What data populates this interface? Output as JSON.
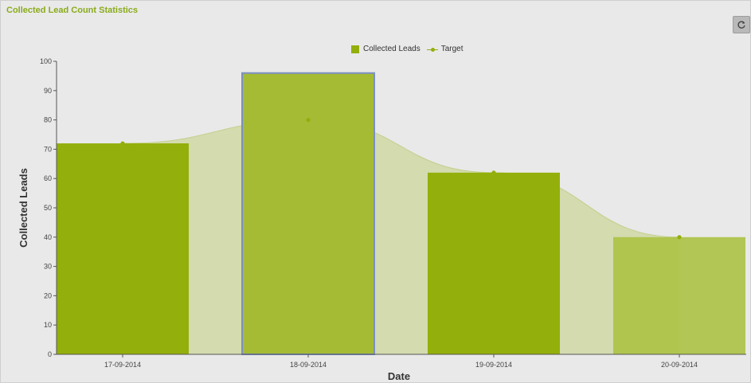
{
  "widget": {
    "title": "Collected Lead Count Statistics",
    "refresh_icon": "refresh-icon"
  },
  "legend": {
    "bar_label": "Collected Leads",
    "line_label": "Target"
  },
  "colors": {
    "bar": "#93af0b",
    "bar_highlight": "#a5bb34",
    "bar_last": "#abc244",
    "highlight_border": "#7c8fc5",
    "area": "#cfd8a4",
    "line": "#93af0b",
    "background": "#e9e9e9"
  },
  "chart_data": {
    "type": "bar",
    "title": "",
    "xlabel": "Date",
    "ylabel": "Collected Leads",
    "ylim": [
      0,
      100
    ],
    "yticks": [
      0,
      10,
      20,
      30,
      40,
      50,
      60,
      70,
      80,
      90,
      100
    ],
    "categories": [
      "17-09-2014",
      "18-09-2014",
      "19-09-2014",
      "20-09-2014"
    ],
    "highlighted_category": "18-09-2014",
    "legend_position": "top-center",
    "series": [
      {
        "name": "Collected Leads",
        "type": "bar",
        "values": [
          72,
          96,
          62,
          40
        ]
      },
      {
        "name": "Target",
        "type": "area",
        "values": [
          72,
          80,
          62,
          40
        ]
      }
    ]
  }
}
